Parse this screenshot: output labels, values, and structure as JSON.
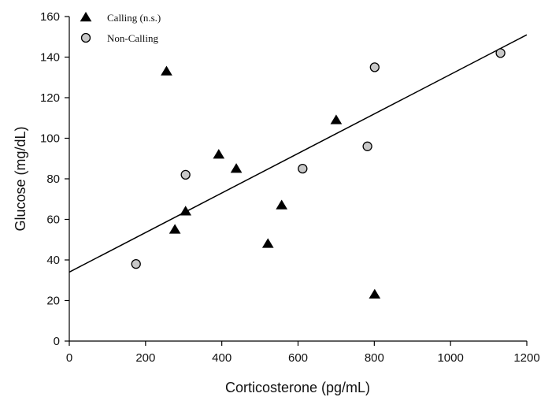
{
  "chart_data": {
    "type": "scatter",
    "xlabel": "Corticosterone (pg/mL)",
    "ylabel": "Glucose (mg/dL)",
    "xlim": [
      0,
      1200
    ],
    "ylim": [
      0,
      160
    ],
    "xticks": [
      0,
      200,
      400,
      600,
      800,
      1000,
      1200
    ],
    "yticks": [
      0,
      20,
      40,
      60,
      80,
      100,
      120,
      140,
      160
    ],
    "grid": false,
    "legend_position": "top-left",
    "series": [
      {
        "name": "Calling (n.s.)",
        "marker": "triangle",
        "color": "#000000",
        "points": [
          {
            "x": 255,
            "y": 133
          },
          {
            "x": 277,
            "y": 55
          },
          {
            "x": 305,
            "y": 64
          },
          {
            "x": 392,
            "y": 92
          },
          {
            "x": 438,
            "y": 85
          },
          {
            "x": 521,
            "y": 48
          },
          {
            "x": 557,
            "y": 67
          },
          {
            "x": 700,
            "y": 109
          },
          {
            "x": 801,
            "y": 23
          }
        ]
      },
      {
        "name": "Non-Calling",
        "marker": "circle",
        "color": "#c8c8c8",
        "points": [
          {
            "x": 175,
            "y": 38
          },
          {
            "x": 305,
            "y": 82
          },
          {
            "x": 612,
            "y": 85
          },
          {
            "x": 782,
            "y": 96
          },
          {
            "x": 801,
            "y": 135
          },
          {
            "x": 1131,
            "y": 142
          }
        ]
      }
    ],
    "trendline": {
      "x1": 0,
      "y1": 34,
      "x2": 1200,
      "y2": 151
    }
  }
}
